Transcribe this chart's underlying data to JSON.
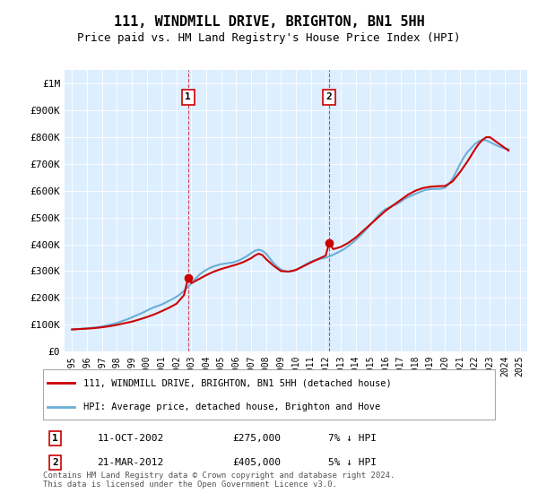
{
  "title": "111, WINDMILL DRIVE, BRIGHTON, BN1 5HH",
  "subtitle": "Price paid vs. HM Land Registry's House Price Index (HPI)",
  "hpi_label": "HPI: Average price, detached house, Brighton and Hove",
  "property_label": "111, WINDMILL DRIVE, BRIGHTON, BN1 5HH (detached house)",
  "footnote": "Contains HM Land Registry data © Crown copyright and database right 2024.\nThis data is licensed under the Open Government Licence v3.0.",
  "sale1_label": "1",
  "sale1_date": "11-OCT-2002",
  "sale1_price": "£275,000",
  "sale1_hpi": "7% ↓ HPI",
  "sale2_label": "2",
  "sale2_date": "21-MAR-2012",
  "sale2_price": "£405,000",
  "sale2_hpi": "5% ↓ HPI",
  "sale1_year": 2002.78,
  "sale1_value": 275000,
  "sale2_year": 2012.22,
  "sale2_value": 405000,
  "hpi_color": "#6baed6",
  "property_color": "#cc0000",
  "sale_marker_color": "#cc0000",
  "background_plot": "#ddeeff",
  "background_fig": "#ffffff",
  "ylim": [
    0,
    1050000
  ],
  "xlim_start": 1994.5,
  "xlim_end": 2025.5,
  "yticks": [
    0,
    100000,
    200000,
    300000,
    400000,
    500000,
    600000,
    700000,
    800000,
    900000,
    1000000
  ],
  "ytick_labels": [
    "£0",
    "£100K",
    "£200K",
    "£300K",
    "£400K",
    "£500K",
    "£600K",
    "£700K",
    "£800K",
    "£900K",
    "£1M"
  ],
  "xticks": [
    1995,
    1996,
    1997,
    1998,
    1999,
    2000,
    2001,
    2002,
    2003,
    2004,
    2005,
    2006,
    2007,
    2008,
    2009,
    2010,
    2011,
    2012,
    2013,
    2014,
    2015,
    2016,
    2017,
    2018,
    2019,
    2020,
    2021,
    2022,
    2023,
    2024,
    2025
  ],
  "hpi_x": [
    1995,
    1995.25,
    1995.5,
    1995.75,
    1996,
    1996.25,
    1996.5,
    1996.75,
    1997,
    1997.25,
    1997.5,
    1997.75,
    1998,
    1998.25,
    1998.5,
    1998.75,
    1999,
    1999.25,
    1999.5,
    1999.75,
    2000,
    2000.25,
    2000.5,
    2000.75,
    2001,
    2001.25,
    2001.5,
    2001.75,
    2002,
    2002.25,
    2002.5,
    2002.75,
    2003,
    2003.25,
    2003.5,
    2003.75,
    2004,
    2004.25,
    2004.5,
    2004.75,
    2005,
    2005.25,
    2005.5,
    2005.75,
    2006,
    2006.25,
    2006.5,
    2006.75,
    2007,
    2007.25,
    2007.5,
    2007.75,
    2008,
    2008.25,
    2008.5,
    2008.75,
    2009,
    2009.25,
    2009.5,
    2009.75,
    2010,
    2010.25,
    2010.5,
    2010.75,
    2011,
    2011.25,
    2011.5,
    2011.75,
    2012,
    2012.25,
    2012.5,
    2012.75,
    2013,
    2013.25,
    2013.5,
    2013.75,
    2014,
    2014.25,
    2014.5,
    2014.75,
    2015,
    2015.25,
    2015.5,
    2015.75,
    2016,
    2016.25,
    2016.5,
    2016.75,
    2017,
    2017.25,
    2017.5,
    2017.75,
    2018,
    2018.25,
    2018.5,
    2018.75,
    2019,
    2019.25,
    2019.5,
    2019.75,
    2020,
    2020.25,
    2020.5,
    2020.75,
    2021,
    2021.25,
    2021.5,
    2021.75,
    2022,
    2022.25,
    2022.5,
    2022.75,
    2023,
    2023.25,
    2023.5,
    2023.75,
    2024,
    2024.25
  ],
  "hpi_y": [
    82000,
    83000,
    84000,
    85000,
    86000,
    87500,
    89000,
    91000,
    93000,
    96000,
    99000,
    102000,
    106000,
    111000,
    116000,
    121000,
    127000,
    133000,
    139000,
    145000,
    152000,
    159000,
    165000,
    170000,
    175000,
    182000,
    189000,
    196000,
    204000,
    214000,
    226000,
    240000,
    255000,
    270000,
    285000,
    296000,
    305000,
    312000,
    318000,
    322000,
    326000,
    328000,
    330000,
    332000,
    336000,
    342000,
    349000,
    357000,
    367000,
    376000,
    380000,
    376000,
    365000,
    348000,
    330000,
    316000,
    306000,
    300000,
    298000,
    300000,
    305000,
    312000,
    320000,
    328000,
    335000,
    340000,
    344000,
    347000,
    350000,
    355000,
    361000,
    368000,
    375000,
    383000,
    393000,
    404000,
    416000,
    429000,
    443000,
    458000,
    474000,
    490000,
    507000,
    520000,
    531000,
    538000,
    544000,
    550000,
    558000,
    568000,
    576000,
    582000,
    588000,
    594000,
    600000,
    604000,
    606000,
    607000,
    607000,
    608000,
    612000,
    625000,
    645000,
    672000,
    700000,
    725000,
    745000,
    760000,
    775000,
    785000,
    790000,
    788000,
    782000,
    775000,
    768000,
    762000,
    758000,
    755000
  ],
  "prop_x": [
    1995,
    1995.5,
    1996,
    1996.5,
    1997,
    1997.5,
    1998,
    1998.5,
    1999,
    1999.5,
    2000,
    2000.5,
    2001,
    2001.5,
    2002,
    2002.5,
    2002.78,
    2003,
    2003.5,
    2004,
    2004.5,
    2005,
    2005.5,
    2006,
    2006.5,
    2007,
    2007.25,
    2007.5,
    2007.75,
    2008,
    2008.5,
    2009,
    2009.5,
    2010,
    2010.5,
    2011,
    2011.5,
    2012,
    2012.22,
    2012.5,
    2013,
    2013.5,
    2014,
    2014.5,
    2015,
    2015.5,
    2016,
    2016.5,
    2017,
    2017.5,
    2018,
    2018.5,
    2019,
    2019.5,
    2020,
    2020.5,
    2021,
    2021.5,
    2022,
    2022.25,
    2022.5,
    2022.75,
    2023,
    2023.5,
    2024,
    2024.25
  ],
  "prop_y": [
    82000,
    83500,
    85000,
    87000,
    90000,
    94000,
    99000,
    105000,
    111000,
    119000,
    128000,
    138000,
    150000,
    163000,
    178000,
    210000,
    275000,
    255000,
    270000,
    285000,
    298000,
    308000,
    316000,
    324000,
    334000,
    348000,
    358000,
    365000,
    360000,
    345000,
    320000,
    300000,
    298000,
    304000,
    318000,
    332000,
    345000,
    358000,
    405000,
    382000,
    390000,
    405000,
    425000,
    450000,
    475000,
    500000,
    525000,
    545000,
    565000,
    585000,
    600000,
    610000,
    615000,
    617000,
    618000,
    635000,
    670000,
    710000,
    755000,
    775000,
    790000,
    800000,
    800000,
    780000,
    760000,
    750000
  ]
}
